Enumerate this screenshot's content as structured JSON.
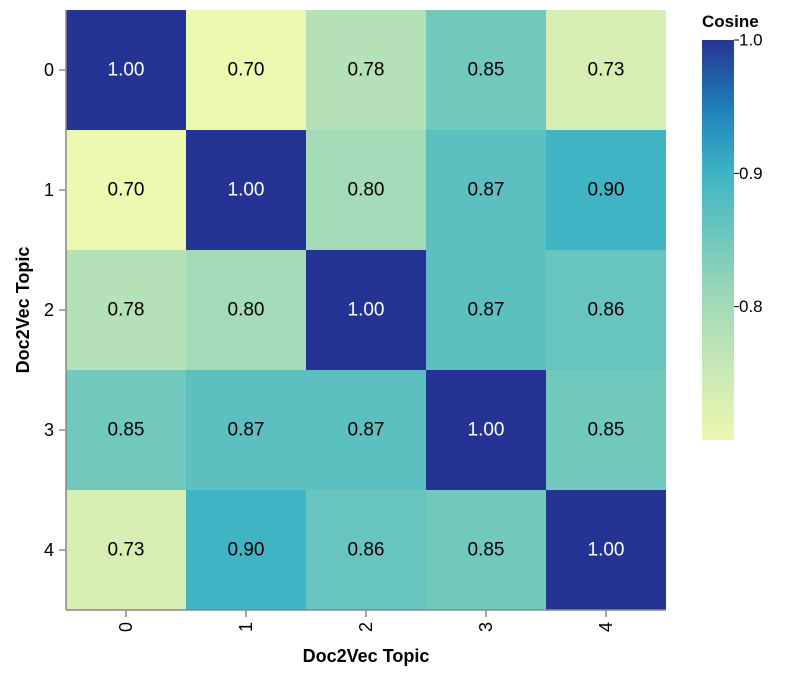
{
  "chart_data": {
    "type": "heatmap",
    "x_categories": [
      "0",
      "1",
      "2",
      "3",
      "4"
    ],
    "y_categories": [
      "0",
      "1",
      "2",
      "3",
      "4"
    ],
    "values": [
      [
        1.0,
        0.7,
        0.78,
        0.85,
        0.73
      ],
      [
        0.7,
        1.0,
        0.8,
        0.87,
        0.9
      ],
      [
        0.78,
        0.8,
        1.0,
        0.87,
        0.86
      ],
      [
        0.85,
        0.87,
        0.87,
        1.0,
        0.85
      ],
      [
        0.73,
        0.9,
        0.86,
        0.85,
        1.0
      ]
    ],
    "cell_labels": [
      [
        "1.00",
        "0.70",
        "0.78",
        "0.85",
        "0.73"
      ],
      [
        "0.70",
        "1.00",
        "0.80",
        "0.87",
        "0.90"
      ],
      [
        "0.78",
        "0.80",
        "1.00",
        "0.87",
        "0.86"
      ],
      [
        "0.85",
        "0.87",
        "0.87",
        "1.00",
        "0.85"
      ],
      [
        "0.73",
        "0.90",
        "0.86",
        "0.85",
        "1.00"
      ]
    ],
    "xlabel": "Doc2Vec Topic",
    "ylabel": "Doc2Vec Topic",
    "color_scale": {
      "title": "Cosine",
      "domain": [
        0.7,
        1.0
      ],
      "ticks": [
        {
          "value": 1.0,
          "label": "1.0"
        },
        {
          "value": 0.9,
          "label": "0.9"
        },
        {
          "value": 0.8,
          "label": "0.8"
        }
      ],
      "scheme": "yellow-green-blue",
      "low_color": "#edf8b1",
      "high_color": "#253494"
    },
    "legend_placement": "right"
  }
}
